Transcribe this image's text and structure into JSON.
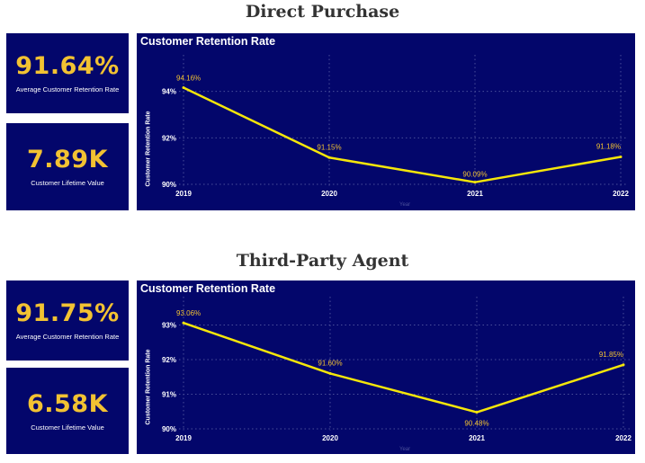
{
  "sections": [
    {
      "title": "Direct Purchase",
      "kpis": [
        {
          "value": "91.64%",
          "label": "Average Customer Retention Rate"
        },
        {
          "value": "7.89K",
          "label": "Customer Lifetime Value"
        }
      ]
    },
    {
      "title": "Third-Party Agent",
      "kpis": [
        {
          "value": "91.75%",
          "label": "Average Customer Retention Rate"
        },
        {
          "value": "6.58K",
          "label": "Customer Lifetime Value"
        }
      ]
    }
  ],
  "colors": {
    "panel": "#03066b",
    "accent": "#f2c232",
    "line": "#f5e60a",
    "grid": "#4a4f9a"
  },
  "chart_data": [
    {
      "type": "line",
      "title": "Customer Retention Rate",
      "ylabel": "Customer Retention Rate",
      "xlabel": "Year",
      "categories": [
        "2019",
        "2020",
        "2021",
        "2022"
      ],
      "values": [
        94.16,
        91.15,
        90.09,
        91.18
      ],
      "data_labels": [
        "94.16%",
        "91.15%",
        "90.09%",
        "91.18%"
      ],
      "yticks": [
        90,
        92,
        94
      ],
      "ytick_labels": [
        "90%",
        "92%",
        "94%"
      ],
      "ylim": [
        90,
        94.8
      ]
    },
    {
      "type": "line",
      "title": "Customer Retention Rate",
      "ylabel": "Customer Retention Rate",
      "xlabel": "Year",
      "categories": [
        "2019",
        "2020",
        "2021",
        "2022"
      ],
      "values": [
        93.06,
        91.6,
        90.48,
        91.85
      ],
      "data_labels": [
        "93.06%",
        "91.60%",
        "90.48%",
        "91.85%"
      ],
      "yticks": [
        90,
        91,
        92,
        93
      ],
      "ytick_labels": [
        "90%",
        "91%",
        "92%",
        "93%"
      ],
      "ylim": [
        90,
        93.3
      ]
    }
  ]
}
